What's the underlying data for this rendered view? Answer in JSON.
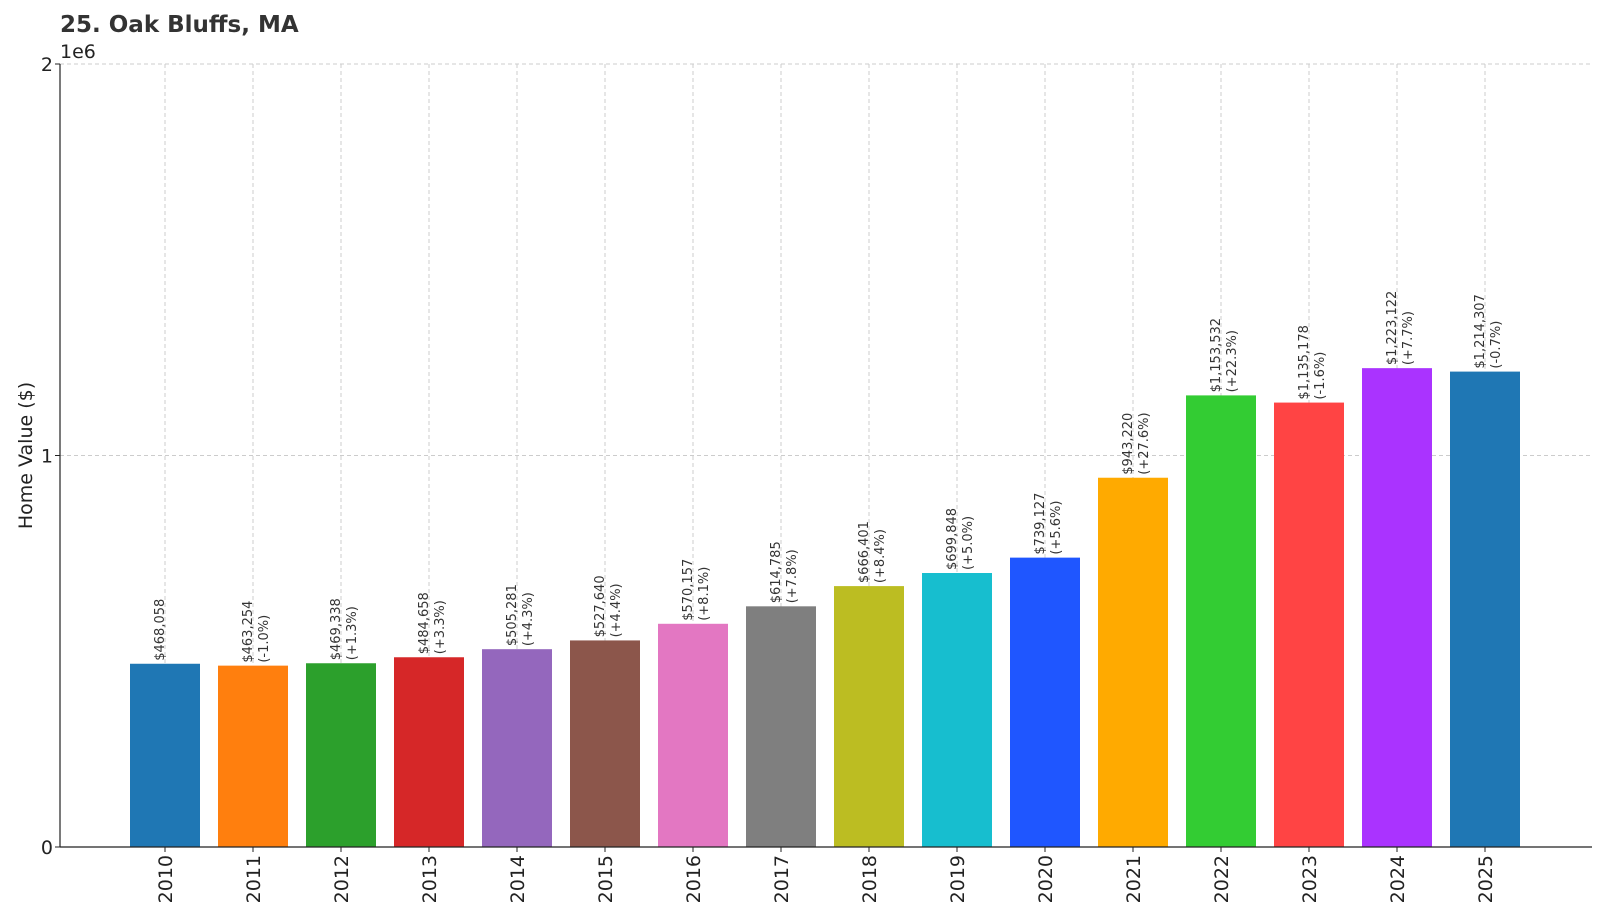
{
  "chart_data": {
    "type": "bar",
    "title": "25. Oak Bluffs, MA",
    "xlabel": "",
    "ylabel": "Home Value ($)",
    "y_offset_text": "1e6",
    "ylim": [
      0,
      2000000
    ],
    "yticks": [
      {
        "value": 0,
        "label": "0"
      },
      {
        "value": 1000000,
        "label": "1"
      },
      {
        "value": 2000000,
        "label": "2"
      }
    ],
    "grid": true,
    "categories": [
      "2010",
      "2011",
      "2012",
      "2013",
      "2014",
      "2015",
      "2016",
      "2017",
      "2018",
      "2019",
      "2020",
      "2021",
      "2022",
      "2023",
      "2024",
      "2025"
    ],
    "values": [
      468058,
      463254,
      469338,
      484658,
      505281,
      527640,
      570157,
      614785,
      666401,
      699848,
      739127,
      943220,
      1153532,
      1135178,
      1223122,
      1214307
    ],
    "value_labels": [
      "$468,058",
      "$463,254",
      "$469,338",
      "$484,658",
      "$505,281",
      "$527,640",
      "$570,157",
      "$614,785",
      "$666,401",
      "$699,848",
      "$739,127",
      "$943,220",
      "$1,153,532",
      "$1,135,178",
      "$1,223,122",
      "$1,214,307"
    ],
    "change_labels": [
      "",
      "(-1.0%)",
      "(+1.3%)",
      "(+3.3%)",
      "(+4.3%)",
      "(+4.4%)",
      "(+8.1%)",
      "(+7.8%)",
      "(+8.4%)",
      "(+5.0%)",
      "(+5.6%)",
      "(+27.6%)",
      "(+22.3%)",
      "(-1.6%)",
      "(+7.7%)",
      "(-0.7%)"
    ],
    "colors": [
      "#1f77b4",
      "#ff7f0e",
      "#2ca02c",
      "#d62728",
      "#9467bd",
      "#8c564b",
      "#e377c2",
      "#7f7f7f",
      "#bcbd22",
      "#17becf",
      "#1f56ff",
      "#ffaa00",
      "#33cc33",
      "#ff4444",
      "#aa33ff",
      "#1f77b4"
    ]
  }
}
